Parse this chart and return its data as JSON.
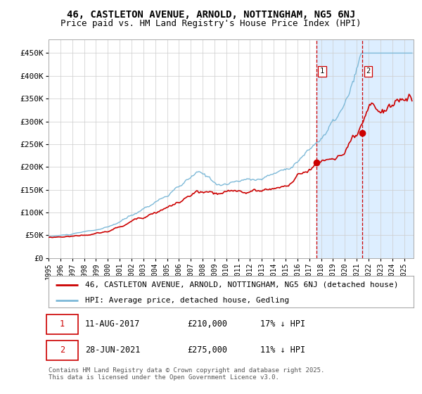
{
  "title1": "46, CASTLETON AVENUE, ARNOLD, NOTTINGHAM, NG5 6NJ",
  "title2": "Price paid vs. HM Land Registry's House Price Index (HPI)",
  "legend1": "46, CASTLETON AVENUE, ARNOLD, NOTTINGHAM, NG5 6NJ (detached house)",
  "legend2": "HPI: Average price, detached house, Gedling",
  "purchase1_date": "11-AUG-2017",
  "purchase1_price": 210000,
  "purchase1_label": "1",
  "purchase1_note": "17% ↓ HPI",
  "purchase2_date": "28-JUN-2021",
  "purchase2_price": 275000,
  "purchase2_label": "2",
  "purchase2_note": "11% ↓ HPI",
  "purchase1_year": 2017.61,
  "purchase2_year": 2021.49,
  "ylim": [
    0,
    480000
  ],
  "yticks": [
    0,
    50000,
    100000,
    150000,
    200000,
    250000,
    300000,
    350000,
    400000,
    450000
  ],
  "ytick_labels": [
    "£0",
    "£50K",
    "£100K",
    "£150K",
    "£200K",
    "£250K",
    "£300K",
    "£350K",
    "£400K",
    "£450K"
  ],
  "xlim_start": 1995.0,
  "xlim_end": 2025.8,
  "hpi_color": "#7db9d8",
  "price_color": "#cc0000",
  "marker_color": "#cc0000",
  "bg_color": "#ffffff",
  "vline_color": "#cc0000",
  "highlight_color": "#ddeeff",
  "footer": "Contains HM Land Registry data © Crown copyright and database right 2025.\nThis data is licensed under the Open Government Licence v3.0.",
  "title_fontsize": 10,
  "subtitle_fontsize": 9,
  "tick_fontsize": 8,
  "legend_fontsize": 8,
  "footer_fontsize": 6.5,
  "xtick_years": [
    1995,
    1996,
    1997,
    1998,
    1999,
    2000,
    2001,
    2002,
    2003,
    2004,
    2005,
    2006,
    2007,
    2008,
    2009,
    2010,
    2011,
    2012,
    2013,
    2014,
    2015,
    2016,
    2017,
    2018,
    2019,
    2020,
    2021,
    2022,
    2023,
    2024,
    2025
  ]
}
